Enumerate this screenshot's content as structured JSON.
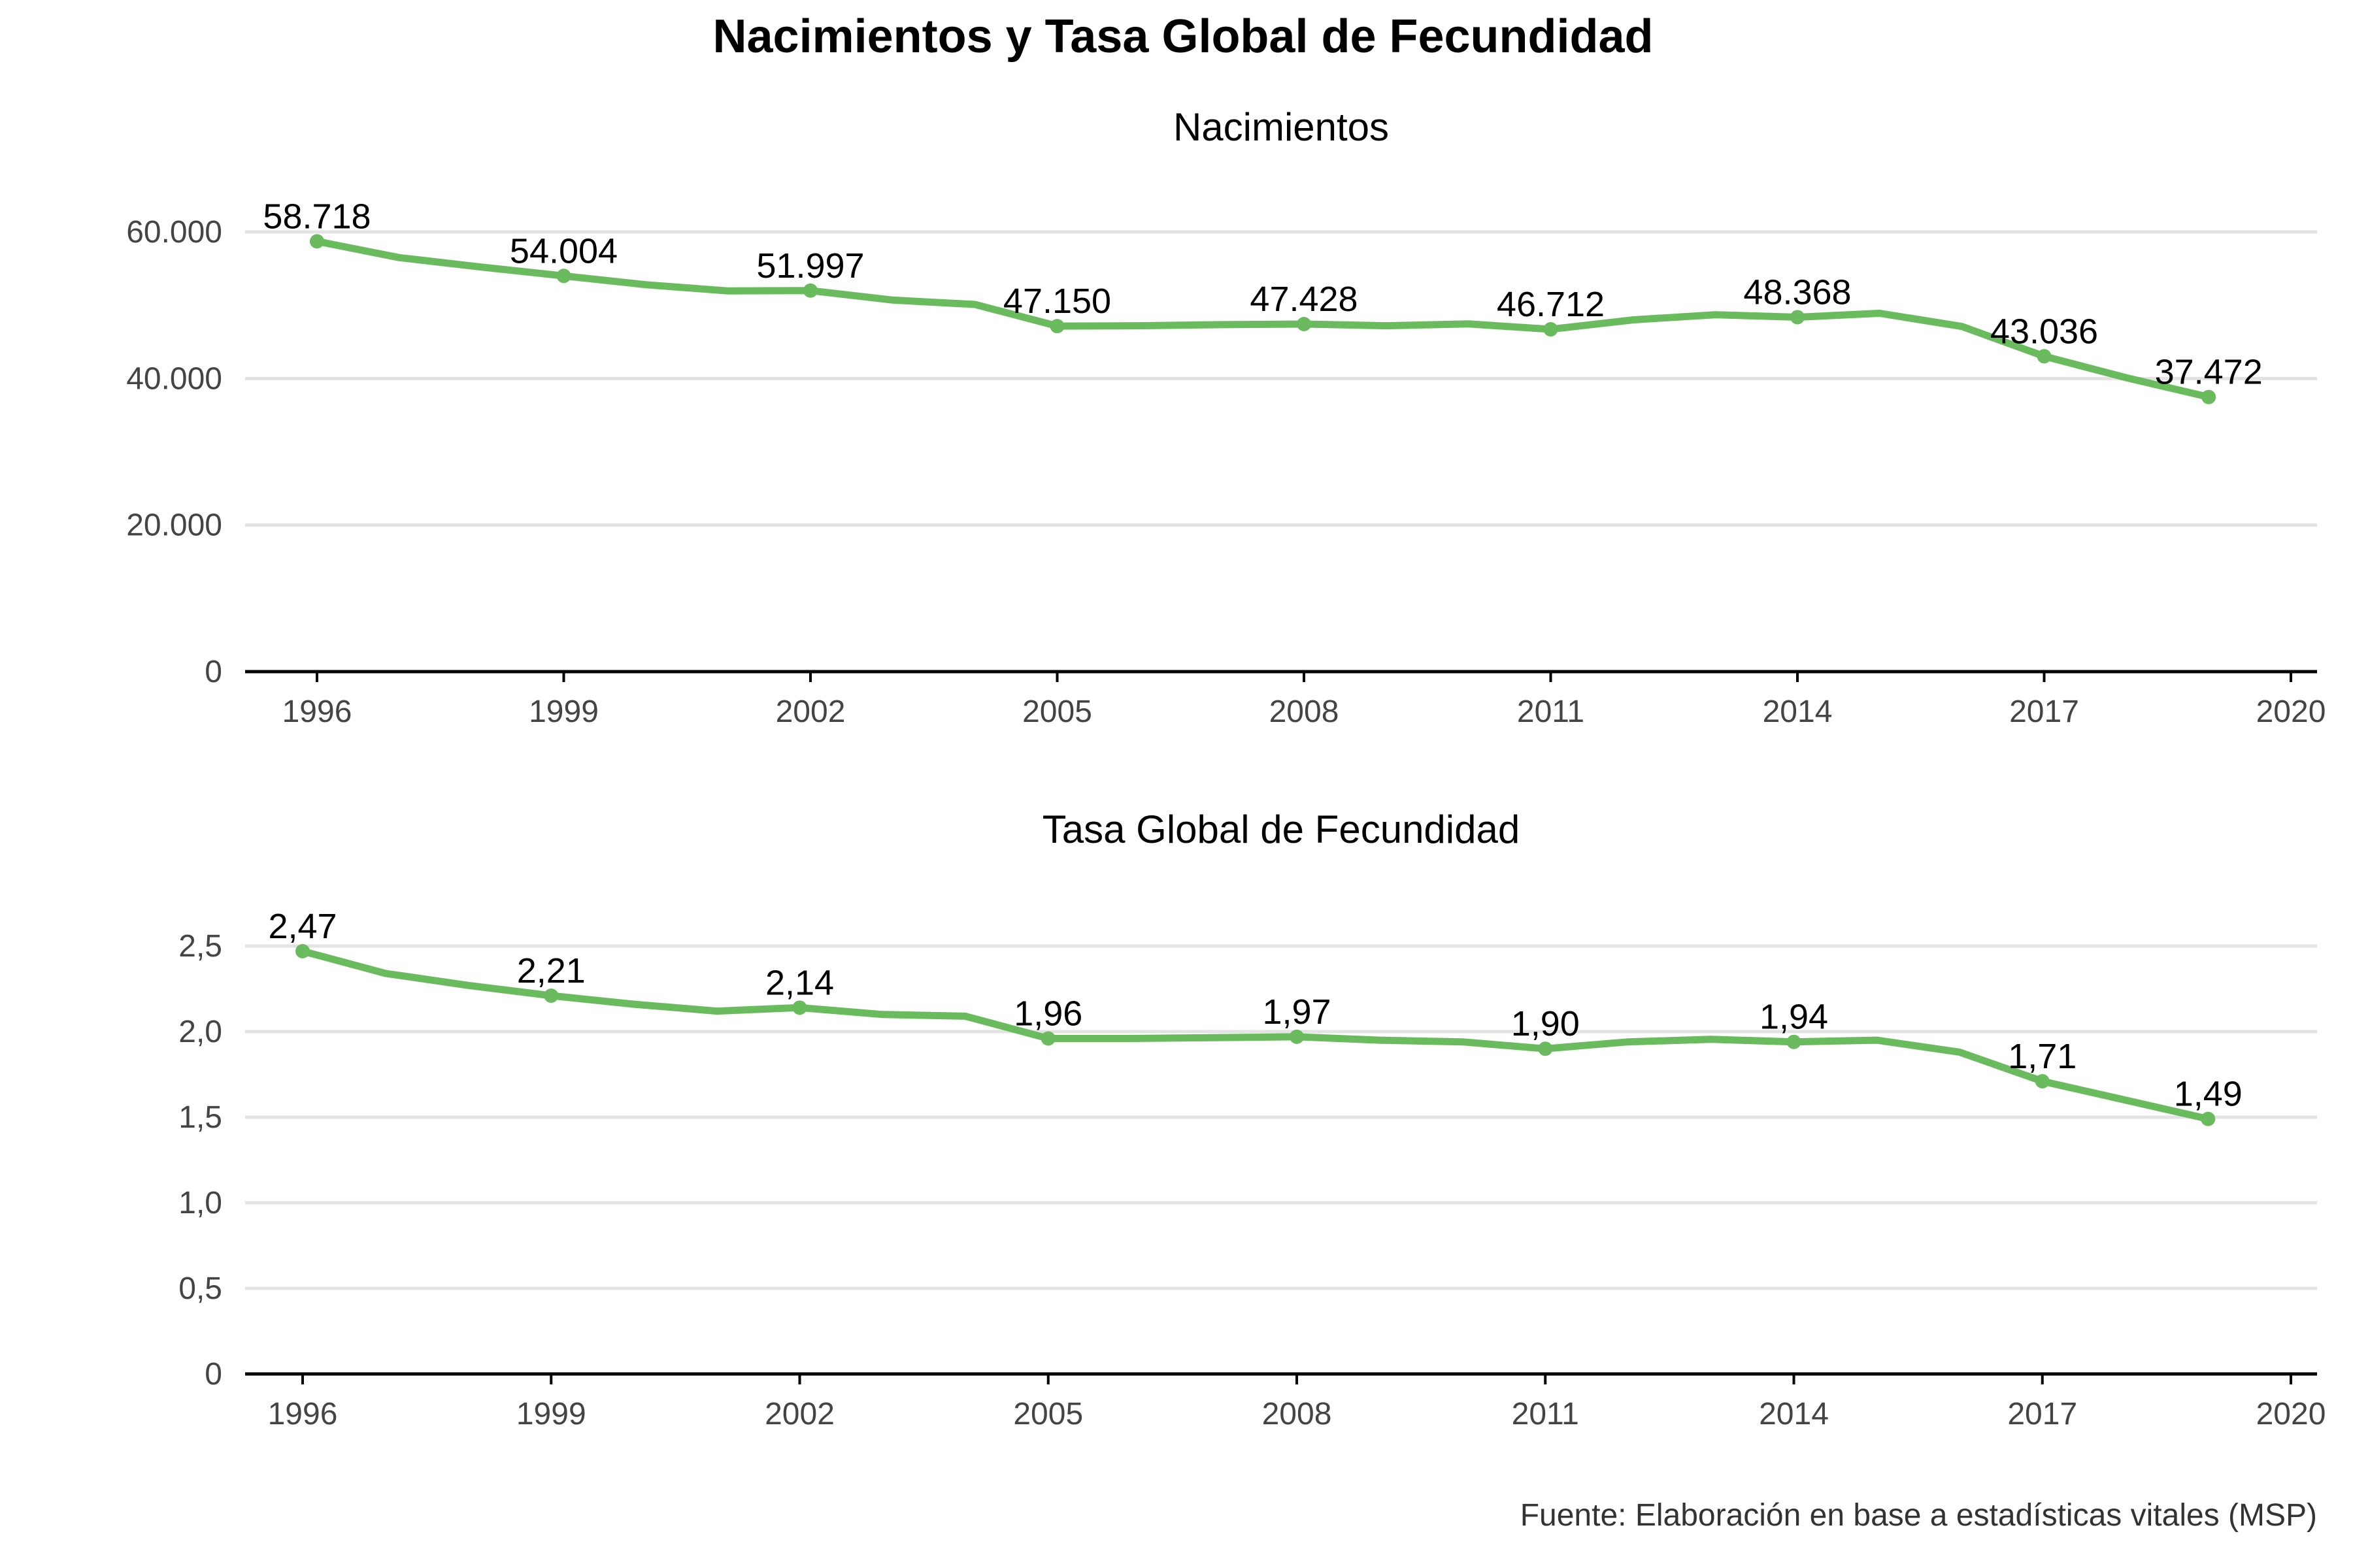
{
  "title": "Nacimientos y Tasa Global de Fecundidad",
  "caption": "Fuente: Elaboración en base a estadísticas vitales (MSP)",
  "colors": {
    "series": "#6abb5e"
  },
  "chart_data": [
    {
      "type": "line",
      "title": "Nacimientos",
      "xlim": [
        1996,
        2020
      ],
      "x_ticks": [
        1996,
        1999,
        2002,
        2005,
        2008,
        2011,
        2014,
        2017,
        2020
      ],
      "x_tick_labels": [
        "1996",
        "1999",
        "2002",
        "2005",
        "2008",
        "2011",
        "2014",
        "2017",
        "2020"
      ],
      "ylim": [
        0,
        60000
      ],
      "y_ticks": [
        0,
        20000,
        40000,
        60000
      ],
      "y_tick_labels": [
        "0",
        "20.000",
        "40.000",
        "60.000"
      ],
      "grid": true,
      "x": [
        1996,
        1997,
        1998,
        1999,
        2000,
        2001,
        2002,
        2003,
        2004,
        2005,
        2006,
        2007,
        2008,
        2009,
        2010,
        2011,
        2012,
        2013,
        2014,
        2015,
        2016,
        2017,
        2018,
        2019
      ],
      "y": [
        58718,
        56500,
        55200,
        54004,
        52800,
        51950,
        51997,
        50700,
        50100,
        47150,
        47200,
        47350,
        47428,
        47200,
        47450,
        46712,
        48000,
        48700,
        48368,
        48900,
        47100,
        43036,
        40100,
        37472
      ],
      "markers": [
        {
          "x": 1996,
          "y": 58718,
          "label": "58.718"
        },
        {
          "x": 1999,
          "y": 54004,
          "label": "54.004"
        },
        {
          "x": 2002,
          "y": 51997,
          "label": "51.997"
        },
        {
          "x": 2005,
          "y": 47150,
          "label": "47.150"
        },
        {
          "x": 2008,
          "y": 47428,
          "label": "47.428"
        },
        {
          "x": 2011,
          "y": 46712,
          "label": "46.712"
        },
        {
          "x": 2014,
          "y": 48368,
          "label": "48.368"
        },
        {
          "x": 2017,
          "y": 43036,
          "label": "43.036"
        },
        {
          "x": 2019,
          "y": 37472,
          "label": "37.472"
        }
      ]
    },
    {
      "type": "line",
      "title": "Tasa Global de Fecundidad",
      "xlim": [
        1996,
        2020
      ],
      "x_ticks": [
        1996,
        1999,
        2002,
        2005,
        2008,
        2011,
        2014,
        2017,
        2020
      ],
      "x_tick_labels": [
        "1996",
        "1999",
        "2002",
        "2005",
        "2008",
        "2011",
        "2014",
        "2017",
        "2020"
      ],
      "ylim": [
        0,
        2.5
      ],
      "y_ticks": [
        0,
        0.5,
        1.0,
        1.5,
        2.0,
        2.5
      ],
      "y_tick_labels": [
        "0",
        "0,5",
        "1,0",
        "1,5",
        "2,0",
        "2,5"
      ],
      "grid": true,
      "x": [
        1996,
        1997,
        1998,
        1999,
        2000,
        2001,
        2002,
        2003,
        2004,
        2005,
        2006,
        2007,
        2008,
        2009,
        2010,
        2011,
        2012,
        2013,
        2014,
        2015,
        2016,
        2017,
        2018,
        2019
      ],
      "y": [
        2.47,
        2.34,
        2.27,
        2.21,
        2.16,
        2.12,
        2.14,
        2.1,
        2.09,
        1.96,
        1.96,
        1.965,
        1.97,
        1.95,
        1.94,
        1.9,
        1.94,
        1.955,
        1.94,
        1.95,
        1.88,
        1.71,
        1.6,
        1.49
      ],
      "markers": [
        {
          "x": 1996,
          "y": 2.47,
          "label": "2,47"
        },
        {
          "x": 1999,
          "y": 2.21,
          "label": "2,21"
        },
        {
          "x": 2002,
          "y": 2.14,
          "label": "2,14"
        },
        {
          "x": 2005,
          "y": 1.96,
          "label": "1,96"
        },
        {
          "x": 2008,
          "y": 1.97,
          "label": "1,97"
        },
        {
          "x": 2011,
          "y": 1.9,
          "label": "1,90"
        },
        {
          "x": 2014,
          "y": 1.94,
          "label": "1,94"
        },
        {
          "x": 2017,
          "y": 1.71,
          "label": "1,71"
        },
        {
          "x": 2019,
          "y": 1.49,
          "label": "1,49"
        }
      ]
    }
  ]
}
